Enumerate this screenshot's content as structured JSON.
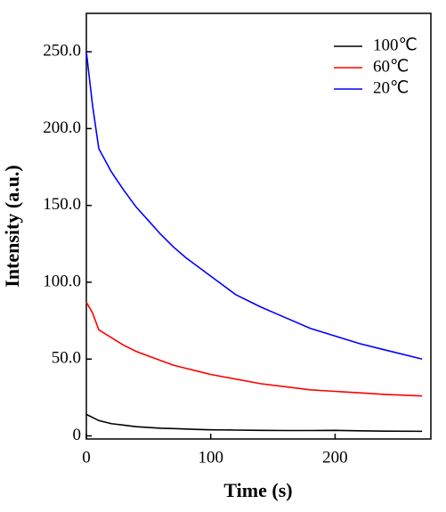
{
  "chart_data": {
    "type": "line",
    "xlabel": "Time (s)",
    "ylabel": "Intensity (a.u.)",
    "x": [
      0,
      5,
      10,
      20,
      30,
      40,
      50,
      60,
      70,
      80,
      90,
      100,
      120,
      140,
      160,
      180,
      200,
      220,
      240,
      270
    ],
    "series": [
      {
        "name": "100℃",
        "color": "#000000",
        "values": [
          14,
          12,
          10,
          8,
          7,
          6,
          5.5,
          5,
          4.8,
          4.5,
          4.2,
          4,
          3.8,
          3.6,
          3.5,
          3.5,
          3.6,
          3.3,
          3.1,
          3
        ]
      },
      {
        "name": "60℃",
        "color": "#ff0000",
        "values": [
          87,
          80,
          69,
          64,
          59,
          55,
          52,
          49,
          46,
          44,
          42,
          40,
          37,
          34,
          32,
          30,
          29,
          28,
          27,
          26
        ]
      },
      {
        "name": "20℃",
        "color": "#0000ff",
        "values": [
          250,
          215,
          187,
          172,
          160,
          149,
          140,
          131,
          123,
          116,
          110,
          104,
          92,
          84,
          77,
          70,
          65,
          60,
          56,
          50
        ]
      }
    ],
    "xlim": [
      0,
      277
    ],
    "xticks": [
      0,
      100,
      200
    ],
    "ylim": [
      -2,
      275
    ],
    "yticks": [
      0,
      {
        "value": 50,
        "label": "50.0"
      },
      {
        "value": 100,
        "label": "100.0"
      },
      {
        "value": 150,
        "label": "150.0"
      },
      {
        "value": 200,
        "label": "200.0"
      },
      {
        "value": 250,
        "label": "250.0"
      }
    ],
    "legend": "upper-right"
  }
}
